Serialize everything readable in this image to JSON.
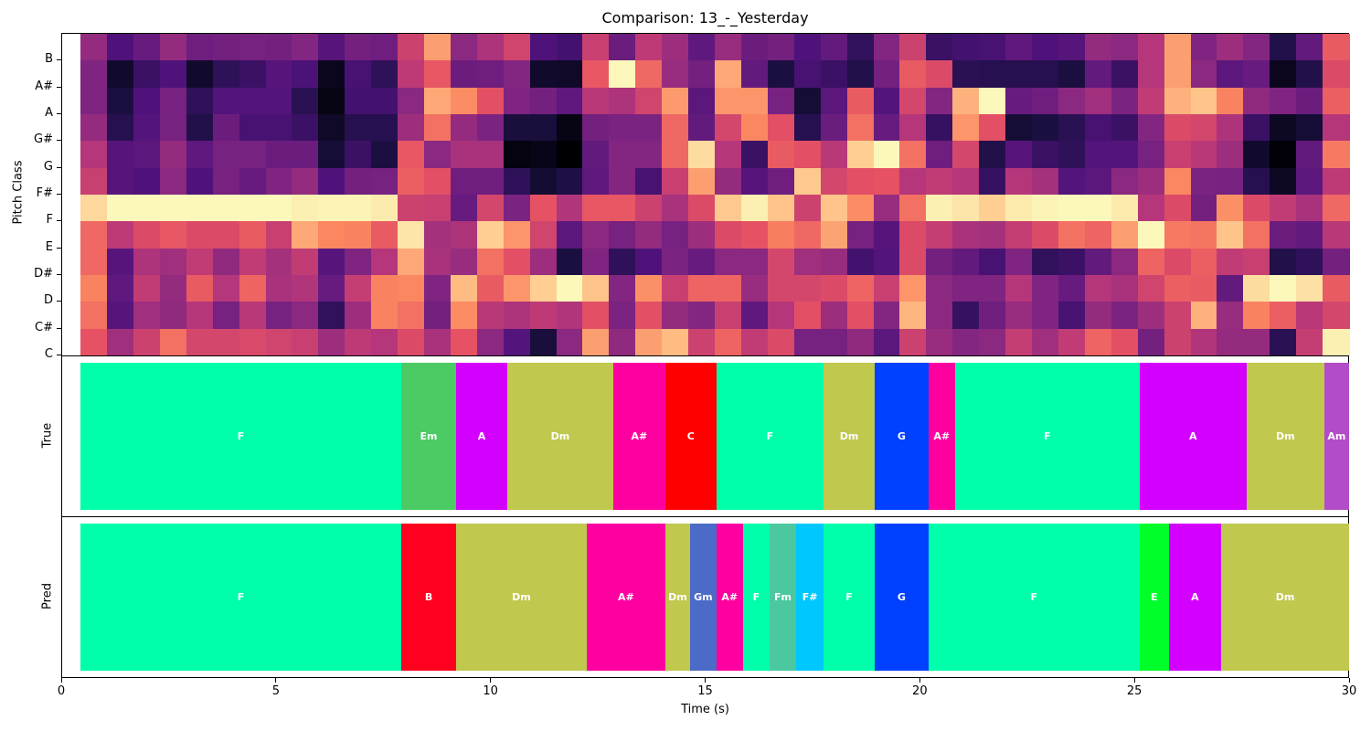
{
  "chart_data": {
    "type": "heatmap",
    "title": "Comparison: 13_-_Yesterday",
    "xlabel": "Time (s)",
    "xlim": [
      0,
      30
    ],
    "xticks": [
      0,
      5,
      10,
      15,
      20,
      25,
      30
    ],
    "colormap": "magma",
    "heatmap": {
      "ylabel": "Pitch Class",
      "ytick_labels": [
        "B",
        "A#",
        "A",
        "G#",
        "G",
        "F#",
        "F",
        "E",
        "D#",
        "D",
        "C#",
        "C"
      ],
      "x_start": 0.45,
      "x_end": 30.0,
      "n_frames": 48,
      "rows_top_to_bottom_note": "display rows from top; tick labels sit at row boundaries",
      "columns": [
        [
          0.42,
          0.37,
          0.37,
          0.42,
          0.5,
          0.55,
          0.92,
          0.68,
          0.68,
          0.74,
          0.7,
          0.63
        ],
        [
          0.25,
          0.08,
          0.12,
          0.15,
          0.27,
          0.27,
          0.99,
          0.52,
          0.27,
          0.29,
          0.27,
          0.45
        ],
        [
          0.31,
          0.2,
          0.25,
          0.26,
          0.28,
          0.25,
          0.99,
          0.6,
          0.48,
          0.53,
          0.45,
          0.56
        ],
        [
          0.42,
          0.25,
          0.35,
          0.35,
          0.42,
          0.4,
          0.99,
          0.64,
          0.45,
          0.42,
          0.41,
          0.7
        ],
        [
          0.33,
          0.08,
          0.17,
          0.14,
          0.29,
          0.25,
          0.99,
          0.6,
          0.53,
          0.65,
          0.5,
          0.58
        ],
        [
          0.34,
          0.17,
          0.26,
          0.32,
          0.35,
          0.35,
          0.99,
          0.6,
          0.41,
          0.5,
          0.35,
          0.58
        ],
        [
          0.35,
          0.2,
          0.26,
          0.23,
          0.35,
          0.31,
          0.99,
          0.65,
          0.53,
          0.67,
          0.51,
          0.59
        ],
        [
          0.34,
          0.27,
          0.26,
          0.23,
          0.32,
          0.37,
          0.99,
          0.55,
          0.46,
          0.47,
          0.35,
          0.57
        ],
        [
          0.38,
          0.24,
          0.16,
          0.2,
          0.32,
          0.42,
          0.97,
          0.82,
          0.53,
          0.49,
          0.4,
          0.55
        ],
        [
          0.27,
          0.05,
          0.03,
          0.07,
          0.1,
          0.25,
          0.98,
          0.75,
          0.27,
          0.31,
          0.18,
          0.44
        ],
        [
          0.34,
          0.23,
          0.22,
          0.15,
          0.2,
          0.34,
          0.98,
          0.74,
          0.37,
          0.54,
          0.44,
          0.52
        ],
        [
          0.33,
          0.17,
          0.22,
          0.15,
          0.12,
          0.35,
          0.96,
          0.65,
          0.5,
          0.74,
          0.74,
          0.5
        ],
        [
          0.56,
          0.52,
          0.4,
          0.44,
          0.64,
          0.66,
          0.56,
          0.95,
          0.82,
          0.75,
          0.7,
          0.6
        ],
        [
          0.8,
          0.64,
          0.82,
          0.7,
          0.4,
          0.62,
          0.55,
          0.46,
          0.47,
          0.37,
          0.34,
          0.47
        ],
        [
          0.4,
          0.32,
          0.76,
          0.42,
          0.47,
          0.33,
          0.31,
          0.48,
          0.43,
          0.86,
          0.76,
          0.63
        ],
        [
          0.48,
          0.33,
          0.62,
          0.36,
          0.47,
          0.33,
          0.58,
          0.9,
          0.7,
          0.65,
          0.51,
          0.4
        ],
        [
          0.57,
          0.38,
          0.37,
          0.11,
          0.02,
          0.17,
          0.36,
          0.78,
          0.62,
          0.78,
          0.48,
          0.26
        ],
        [
          0.25,
          0.08,
          0.34,
          0.11,
          0.04,
          0.09,
          0.63,
          0.57,
          0.44,
          0.9,
          0.52,
          0.11
        ],
        [
          0.22,
          0.07,
          0.29,
          0.03,
          0.0,
          0.13,
          0.49,
          0.28,
          0.12,
          0.99,
          0.49,
          0.4
        ],
        [
          0.55,
          0.64,
          0.51,
          0.34,
          0.3,
          0.29,
          0.64,
          0.4,
          0.37,
          0.88,
          0.62,
          0.8
        ],
        [
          0.32,
          0.99,
          0.48,
          0.36,
          0.38,
          0.38,
          0.64,
          0.35,
          0.17,
          0.38,
          0.36,
          0.41
        ],
        [
          0.52,
          0.68,
          0.57,
          0.36,
          0.38,
          0.23,
          0.56,
          0.42,
          0.25,
          0.77,
          0.62,
          0.8
        ],
        [
          0.44,
          0.43,
          0.79,
          0.68,
          0.68,
          0.55,
          0.47,
          0.35,
          0.36,
          0.55,
          0.42,
          0.86
        ],
        [
          0.29,
          0.34,
          0.28,
          0.3,
          0.93,
          0.8,
          0.6,
          0.44,
          0.31,
          0.67,
          0.38,
          0.56
        ],
        [
          0.43,
          0.82,
          0.78,
          0.58,
          0.5,
          0.42,
          0.89,
          0.6,
          0.4,
          0.67,
          0.55,
          0.67
        ],
        [
          0.32,
          0.3,
          0.78,
          0.75,
          0.2,
          0.27,
          0.97,
          0.63,
          0.4,
          0.43,
          0.29,
          0.53
        ],
        [
          0.34,
          0.12,
          0.35,
          0.62,
          0.65,
          0.33,
          0.88,
          0.73,
          0.58,
          0.58,
          0.5,
          0.6
        ],
        [
          0.25,
          0.23,
          0.1,
          0.15,
          0.62,
          0.89,
          0.56,
          0.68,
          0.45,
          0.58,
          0.62,
          0.35
        ],
        [
          0.3,
          0.2,
          0.28,
          0.32,
          0.51,
          0.58,
          0.88,
          0.81,
          0.43,
          0.6,
          0.44,
          0.35
        ],
        [
          0.18,
          0.14,
          0.65,
          0.7,
          0.9,
          0.62,
          0.76,
          0.35,
          0.22,
          0.67,
          0.62,
          0.41
        ],
        [
          0.38,
          0.34,
          0.26,
          0.31,
          0.99,
          0.63,
          0.43,
          0.27,
          0.26,
          0.55,
          0.38,
          0.28
        ],
        [
          0.56,
          0.65,
          0.58,
          0.5,
          0.7,
          0.5,
          0.7,
          0.6,
          0.6,
          0.78,
          0.85,
          0.56
        ],
        [
          0.2,
          0.6,
          0.38,
          0.19,
          0.33,
          0.53,
          0.97,
          0.54,
          0.34,
          0.4,
          0.4,
          0.43
        ],
        [
          0.22,
          0.16,
          0.84,
          0.78,
          0.58,
          0.5,
          0.95,
          0.47,
          0.3,
          0.37,
          0.19,
          0.38
        ],
        [
          0.23,
          0.15,
          0.99,
          0.62,
          0.14,
          0.19,
          0.9,
          0.46,
          0.23,
          0.37,
          0.33,
          0.4
        ],
        [
          0.29,
          0.15,
          0.31,
          0.1,
          0.27,
          0.5,
          0.96,
          0.54,
          0.37,
          0.5,
          0.43,
          0.54
        ],
        [
          0.25,
          0.15,
          0.33,
          0.12,
          0.2,
          0.46,
          0.98,
          0.6,
          0.18,
          0.37,
          0.37,
          0.45
        ],
        [
          0.27,
          0.12,
          0.4,
          0.16,
          0.17,
          0.26,
          0.99,
          0.7,
          0.2,
          0.31,
          0.23,
          0.53
        ],
        [
          0.42,
          0.3,
          0.45,
          0.23,
          0.26,
          0.28,
          0.99,
          0.67,
          0.3,
          0.5,
          0.42,
          0.67
        ],
        [
          0.4,
          0.2,
          0.36,
          0.2,
          0.26,
          0.4,
          0.96,
          0.8,
          0.4,
          0.47,
          0.36,
          0.62
        ],
        [
          0.5,
          0.5,
          0.53,
          0.38,
          0.35,
          0.44,
          0.5,
          0.99,
          0.67,
          0.57,
          0.44,
          0.34
        ],
        [
          0.8,
          0.8,
          0.84,
          0.6,
          0.55,
          0.75,
          0.6,
          0.72,
          0.6,
          0.66,
          0.56,
          0.56
        ],
        [
          0.37,
          0.4,
          0.88,
          0.58,
          0.51,
          0.36,
          0.34,
          0.71,
          0.66,
          0.65,
          0.84,
          0.49
        ],
        [
          0.44,
          0.28,
          0.74,
          0.48,
          0.44,
          0.35,
          0.77,
          0.88,
          0.53,
          0.3,
          0.43,
          0.42
        ],
        [
          0.38,
          0.31,
          0.41,
          0.2,
          0.08,
          0.15,
          0.6,
          0.7,
          0.55,
          0.93,
          0.74,
          0.42
        ],
        [
          0.14,
          0.05,
          0.37,
          0.06,
          0.01,
          0.06,
          0.53,
          0.32,
          0.14,
          0.99,
          0.66,
          0.16
        ],
        [
          0.3,
          0.14,
          0.32,
          0.1,
          0.3,
          0.28,
          0.47,
          0.3,
          0.17,
          0.94,
          0.51,
          0.54
        ],
        [
          0.65,
          0.6,
          0.66,
          0.5,
          0.72,
          0.52,
          0.68,
          0.51,
          0.34,
          0.65,
          0.58,
          0.97
        ]
      ]
    },
    "true_chords": {
      "ylabel": "True",
      "segments": [
        {
          "label": "F",
          "start": 0.45,
          "end": 7.92,
          "color": "#00ffaa"
        },
        {
          "label": "Em",
          "start": 7.92,
          "end": 9.2,
          "color": "#4cca63"
        },
        {
          "label": "A",
          "start": 9.2,
          "end": 10.39,
          "color": "#d400ff"
        },
        {
          "label": "Dm",
          "start": 10.39,
          "end": 12.86,
          "color": "#c0c84e"
        },
        {
          "label": "A#",
          "start": 12.86,
          "end": 14.07,
          "color": "#ff00a0"
        },
        {
          "label": "C",
          "start": 14.07,
          "end": 15.26,
          "color": "#ff0000"
        },
        {
          "label": "F",
          "start": 15.26,
          "end": 17.76,
          "color": "#00ffaa"
        },
        {
          "label": "Dm",
          "start": 17.76,
          "end": 18.95,
          "color": "#c0c84e"
        },
        {
          "label": "G",
          "start": 18.95,
          "end": 20.2,
          "color": "#0040ff"
        },
        {
          "label": "A#",
          "start": 20.2,
          "end": 20.82,
          "color": "#ff00a0"
        },
        {
          "label": "F",
          "start": 20.82,
          "end": 25.12,
          "color": "#00ffaa"
        },
        {
          "label": "A",
          "start": 25.12,
          "end": 27.61,
          "color": "#d400ff"
        },
        {
          "label": "Dm",
          "start": 27.61,
          "end": 29.42,
          "color": "#c0c84e"
        },
        {
          "label": "Am",
          "start": 29.42,
          "end": 30.0,
          "color": "#b24cc8"
        }
      ]
    },
    "pred_chords": {
      "ylabel": "Pred",
      "segments": [
        {
          "label": "F",
          "start": 0.45,
          "end": 7.92,
          "color": "#00ffaa"
        },
        {
          "label": "B",
          "start": 7.92,
          "end": 9.2,
          "color": "#ff001e"
        },
        {
          "label": "Dm",
          "start": 9.2,
          "end": 12.24,
          "color": "#c0c84e"
        },
        {
          "label": "A#",
          "start": 12.24,
          "end": 14.07,
          "color": "#ff00a0"
        },
        {
          "label": "Dm",
          "start": 14.07,
          "end": 14.65,
          "color": "#c0c84e"
        },
        {
          "label": "Gm",
          "start": 14.65,
          "end": 15.26,
          "color": "#4c6ac8"
        },
        {
          "label": "A#",
          "start": 15.26,
          "end": 15.88,
          "color": "#ff00a0"
        },
        {
          "label": "F",
          "start": 15.88,
          "end": 16.5,
          "color": "#00ffaa"
        },
        {
          "label": "Fm",
          "start": 16.5,
          "end": 17.12,
          "color": "#4cc8a0"
        },
        {
          "label": "F#",
          "start": 17.12,
          "end": 17.76,
          "color": "#00c8ff"
        },
        {
          "label": "F",
          "start": 17.76,
          "end": 18.95,
          "color": "#00ffaa"
        },
        {
          "label": "G",
          "start": 18.95,
          "end": 20.2,
          "color": "#0040ff"
        },
        {
          "label": "F",
          "start": 20.2,
          "end": 25.12,
          "color": "#00ffaa"
        },
        {
          "label": "E",
          "start": 25.12,
          "end": 25.8,
          "color": "#00ff2a"
        },
        {
          "label": "A",
          "start": 25.8,
          "end": 27.02,
          "color": "#d400ff"
        },
        {
          "label": "Dm",
          "start": 27.02,
          "end": 30.0,
          "color": "#c0c84e"
        }
      ]
    }
  },
  "labels": {
    "title": "Comparison: 13_-_Yesterday",
    "heat_ylabel": "Pitch Class",
    "true_ylabel": "True",
    "pred_ylabel": "Pred",
    "xlabel": "Time (s)"
  }
}
